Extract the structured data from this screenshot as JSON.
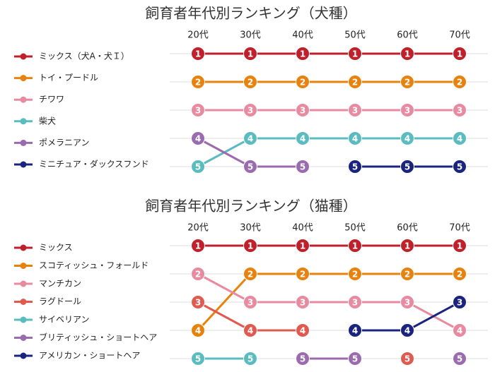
{
  "chart_data": [
    {
      "type": "bump",
      "title": "飼育者年代別ランキング（犬種）",
      "categories": [
        "20代",
        "30代",
        "40代",
        "50代",
        "60代",
        "70代"
      ],
      "ylim": [
        5,
        1
      ],
      "grid": true,
      "series": [
        {
          "name": "ミックス（犬A・犬Ｉ）",
          "color": "#c0202a",
          "values": [
            1,
            1,
            1,
            1,
            1,
            1
          ]
        },
        {
          "name": "トイ・プードル",
          "color": "#e8820c",
          "values": [
            2,
            2,
            2,
            2,
            2,
            2
          ]
        },
        {
          "name": "チワワ",
          "color": "#e88aa0",
          "values": [
            3,
            3,
            3,
            3,
            3,
            3
          ]
        },
        {
          "name": "柴犬",
          "color": "#5bbcc0",
          "values": [
            5,
            4,
            4,
            4,
            4,
            4
          ]
        },
        {
          "name": "ポメラニアン",
          "color": "#9b6bb0",
          "values": [
            4,
            5,
            5,
            null,
            null,
            null
          ]
        },
        {
          "name": "ミニチュア・ダックスフンド",
          "color": "#1a237e",
          "values": [
            null,
            null,
            null,
            5,
            5,
            5
          ]
        }
      ]
    },
    {
      "type": "bump",
      "title": "飼育者年代別ランキング（猫種）",
      "categories": [
        "20代",
        "30代",
        "40代",
        "50代",
        "60代",
        "70代"
      ],
      "ylim": [
        5,
        1
      ],
      "grid": true,
      "series": [
        {
          "name": "ミックス",
          "color": "#c0202a",
          "values": [
            1,
            1,
            1,
            1,
            1,
            1
          ]
        },
        {
          "name": "スコティッシュ・フォールド",
          "color": "#e8820c",
          "values": [
            4,
            2,
            2,
            2,
            2,
            2
          ]
        },
        {
          "name": "マンチカン",
          "color": "#e88aa0",
          "values": [
            2,
            3,
            3,
            3,
            3,
            4
          ]
        },
        {
          "name": "ラグドール",
          "color": "#e05a50",
          "values": [
            3,
            4,
            4,
            null,
            5,
            null
          ]
        },
        {
          "name": "サイベリアン",
          "color": "#5bbcc0",
          "values": [
            5,
            5,
            null,
            null,
            null,
            null
          ]
        },
        {
          "name": "ブリティッシュ・ショートヘア",
          "color": "#9b6bb0",
          "values": [
            null,
            null,
            5,
            5,
            null,
            5
          ]
        },
        {
          "name": "アメリカン・ショートヘア",
          "color": "#1a237e",
          "values": [
            null,
            null,
            null,
            4,
            4,
            3
          ]
        }
      ]
    }
  ]
}
